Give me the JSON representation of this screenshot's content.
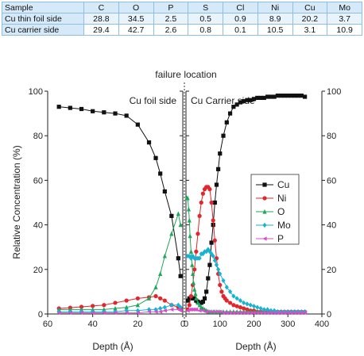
{
  "composition_table": {
    "header": [
      "Sample",
      "C",
      "O",
      "P",
      "S",
      "Cl",
      "Ni",
      "Cu",
      "Mo"
    ],
    "rows": [
      [
        "Cu thin foil side",
        "28.8",
        "34.5",
        "2.5",
        "0.5",
        "0.9",
        "8.9",
        "20.2",
        "3.7"
      ],
      [
        "Cu carrier side",
        "29.4",
        "42.7",
        "2.6",
        "0.8",
        "0.1",
        "10.5",
        "3.1",
        "10.9"
      ]
    ]
  },
  "chart_data": {
    "type": "line",
    "title": "failure location",
    "ylabel": "Relative Concentration (%)",
    "ylim": [
      0,
      100
    ],
    "y_ticks": [
      "0",
      "20",
      "40",
      "60",
      "80",
      "100"
    ],
    "y_ticks_right": [
      "0",
      "20",
      "40",
      "60",
      "80",
      "100"
    ],
    "grid": false,
    "legend_position": "right",
    "panels": [
      {
        "label": "Cu foil side",
        "xlabel": "Depth (Å)",
        "xlim": [
          60,
          0
        ],
        "x_ticks": [
          "60",
          "40",
          "20",
          "0"
        ],
        "series": [
          {
            "name": "Cu",
            "x": [
              55,
              50,
              45,
              40,
              35,
              30,
              25,
              20,
              15,
              12,
              10,
              8,
              5,
              2,
              1
            ],
            "y": [
              93,
              92.5,
              92,
              91,
              90.5,
              90,
              89,
              85,
              77,
              70,
              63,
              55,
              44,
              25,
              17
            ]
          },
          {
            "name": "Ni",
            "x": [
              55,
              50,
              45,
              40,
              35,
              30,
              25,
              20,
              15,
              12,
              10,
              8,
              5,
              2,
              1
            ],
            "y": [
              2.5,
              2.8,
              3.2,
              3.6,
              4,
              5,
              6,
              7,
              7.5,
              8,
              7,
              6,
              4,
              3,
              2.5
            ]
          },
          {
            "name": "O",
            "x": [
              55,
              50,
              45,
              40,
              35,
              30,
              25,
              20,
              15,
              12,
              10,
              8,
              5,
              2,
              1
            ],
            "y": [
              2,
              2,
              2,
              2,
              2,
              2.5,
              3,
              4,
              7,
              12,
              18,
              26,
              36,
              45,
              40
            ]
          },
          {
            "name": "Mo",
            "x": [
              55,
              50,
              45,
              40,
              35,
              30,
              25,
              20,
              15,
              12,
              10,
              8,
              5,
              2,
              1
            ],
            "y": [
              1,
              1,
              1,
              1,
              1,
              1,
              1.5,
              1.5,
              2,
              2,
              2.5,
              3,
              4,
              4,
              3
            ]
          },
          {
            "name": "P",
            "x": [
              55,
              50,
              45,
              40,
              35,
              30,
              25,
              20,
              15,
              12,
              10,
              8,
              5,
              2,
              1
            ],
            "y": [
              0.5,
              0.5,
              0.5,
              0.5,
              0.5,
              0.5,
              0.5,
              0.5,
              1,
              1,
              1,
              1.5,
              2,
              2,
              1.5
            ]
          }
        ]
      },
      {
        "label": "Cu Carrier side",
        "xlabel": "Depth (Å)",
        "xlim": [
          0,
          400
        ],
        "x_ticks": [
          "0",
          "100",
          "200",
          "300",
          "400"
        ],
        "series": [
          {
            "name": "Cu",
            "x": [
              5,
              10,
              15,
              20,
              25,
              30,
              35,
              40,
              45,
              50,
              55,
              60,
              65,
              70,
              75,
              80,
              85,
              90,
              95,
              100,
              110,
              120,
              130,
              140,
              150,
              160,
              170,
              180,
              190,
              200,
              210,
              220,
              230,
              240,
              250,
              260,
              270,
              280,
              290,
              300,
              310,
              320,
              330,
              340,
              350
            ],
            "y": [
              6,
              7,
              7.5,
              7,
              7,
              6,
              5.5,
              5,
              5,
              5.5,
              7,
              10,
              16,
              22,
              32,
              40,
              50,
              58,
              65,
              72,
              80,
              86,
              90,
              93,
              94,
              95,
              95.5,
              96,
              96,
              96.5,
              97,
              97,
              97,
              97.5,
              97.5,
              97.5,
              98,
              98,
              98,
              98,
              98,
              98,
              98,
              98,
              97.5
            ]
          },
          {
            "name": "Ni",
            "x": [
              5,
              10,
              15,
              20,
              25,
              30,
              35,
              40,
              45,
              50,
              55,
              60,
              65,
              70,
              75,
              80,
              85,
              90,
              95,
              100,
              105,
              110,
              115,
              120,
              130,
              140,
              150,
              160,
              170,
              180,
              190,
              200,
              210,
              220,
              230,
              240,
              250,
              260,
              270,
              280,
              290,
              300,
              310,
              320,
              330,
              340,
              350
            ],
            "y": [
              2,
              4,
              8,
              13,
              20,
              28,
              36,
              44,
              50,
              54,
              56,
              57,
              57,
              56,
              50,
              42,
              33,
              25,
              18,
              13,
              10,
              8,
              7,
              6,
              5,
              4,
              3.5,
              3,
              2.5,
              2,
              1.5,
              1.5,
              1,
              1,
              1,
              1,
              1,
              1,
              1,
              1,
              1,
              1,
              1,
              1,
              1,
              1,
              1
            ]
          },
          {
            "name": "O",
            "x": [
              2,
              5,
              8,
              10,
              12,
              15,
              18,
              20,
              22,
              25,
              28,
              30,
              35,
              40,
              45,
              50,
              55,
              60,
              65,
              70,
              75,
              80,
              85,
              90,
              95,
              100,
              110,
              120,
              130,
              140,
              150,
              160,
              170,
              180,
              190,
              200,
              210,
              220,
              230,
              240,
              250,
              260,
              270,
              280,
              290,
              300,
              310,
              320,
              330,
              340,
              350
            ],
            "y": [
              52,
              52,
              47,
              42,
              35,
              28,
              22,
              18,
              14,
              11,
              9,
              7,
              5,
              4,
              3,
              2.5,
              2,
              1.5,
              1.2,
              1,
              1,
              1,
              1,
              1,
              1,
              1,
              1,
              1,
              1,
              1,
              1,
              1,
              1,
              1,
              1,
              1,
              1,
              1,
              1,
              1,
              1,
              1,
              1,
              1,
              1,
              1,
              1,
              1,
              1,
              1,
              1
            ]
          },
          {
            "name": "Mo",
            "x": [
              5,
              10,
              15,
              20,
              25,
              30,
              35,
              40,
              45,
              50,
              55,
              60,
              65,
              70,
              75,
              80,
              85,
              90,
              95,
              100,
              110,
              120,
              130,
              140,
              150,
              160,
              170,
              180,
              190,
              200,
              210,
              220,
              230,
              240,
              250,
              260,
              270,
              280,
              290,
              300,
              310,
              320,
              330,
              340,
              350
            ],
            "y": [
              26,
              26,
              25,
              26,
              25,
              25,
              25,
              25,
              27,
              27,
              28,
              28,
              29,
              28,
              27,
              26,
              24,
              22,
              20,
              18,
              15,
              12,
              10,
              8,
              7,
              6,
              5,
              4.5,
              4,
              3.5,
              3,
              2.5,
              2,
              2,
              1.5,
              1.5,
              1,
              1,
              1,
              1,
              1,
              1,
              1,
              1,
              1
            ]
          },
          {
            "name": "P",
            "x": [
              5,
              10,
              15,
              20,
              25,
              30,
              40,
              50,
              60,
              70,
              80,
              90,
              100,
              110,
              120,
              130,
              140,
              150,
              160,
              170,
              180,
              190,
              200,
              210,
              220,
              230,
              240,
              250,
              260,
              270,
              280,
              290,
              300,
              310,
              320,
              330,
              340,
              350
            ],
            "y": [
              1.5,
              2,
              2,
              2,
              2,
              2,
              1.5,
              1.5,
              1,
              1,
              1,
              1,
              1,
              0.5,
              0.5,
              0.5,
              0.5,
              0.5,
              0.5,
              0.5,
              0.5,
              0.5,
              0.5,
              0.5,
              0.5,
              0.5,
              0.5,
              0.5,
              0.5,
              0.5,
              0.5,
              0.5,
              0.5,
              0.5,
              0.5,
              0.5,
              0.5,
              0.5
            ]
          }
        ]
      }
    ],
    "legend": [
      "Cu",
      "Ni",
      "O",
      "Mo",
      "P"
    ],
    "colors": {
      "Cu": "#111111",
      "Ni": "#e2262d",
      "O": "#1fa65a",
      "Mo": "#17b3d1",
      "P": "#d44fc9"
    },
    "markers": {
      "Cu": "square",
      "Ni": "circle",
      "O": "triangle-up",
      "Mo": "diamond",
      "P": "triangle-left"
    }
  }
}
